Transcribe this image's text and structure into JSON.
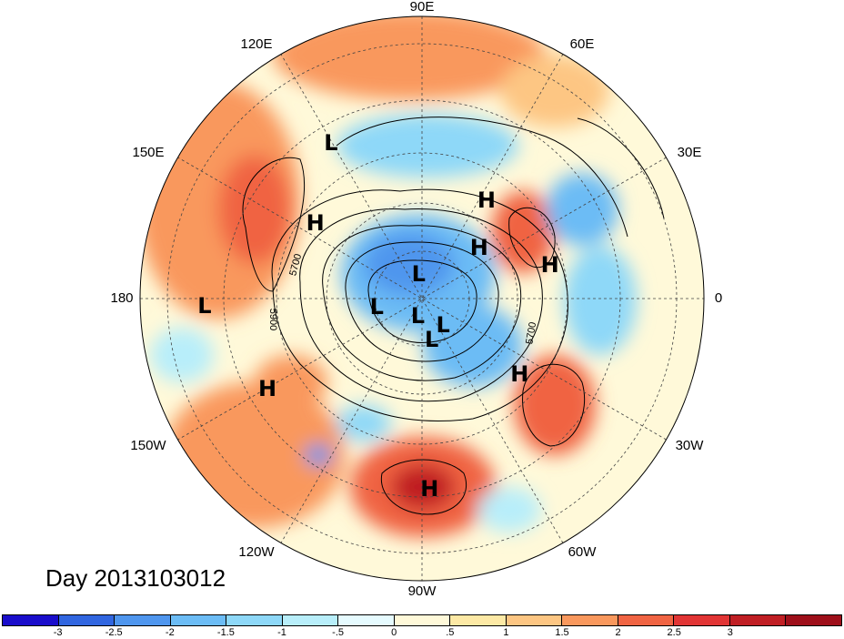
{
  "map": {
    "longitude_labels": [
      "90E",
      "60E",
      "30E",
      "0",
      "30W",
      "60W",
      "90W",
      "120W",
      "150W",
      "180",
      "150E",
      "120E"
    ],
    "pressure_centers": [
      {
        "type": "L",
        "lon_deg": 120,
        "lat_deg": 25
      },
      {
        "type": "L",
        "lon_deg": -178,
        "lat_deg": 15
      },
      {
        "type": "H",
        "lon_deg": 145,
        "lat_deg": 40
      },
      {
        "type": "H",
        "lon_deg": -150,
        "lat_deg": 25
      },
      {
        "type": "H",
        "lon_deg": -88,
        "lat_deg": 22
      },
      {
        "type": "H",
        "lon_deg": -38,
        "lat_deg": 43
      },
      {
        "type": "H",
        "lon_deg": 15,
        "lat_deg": 40
      },
      {
        "type": "H",
        "lon_deg": 42,
        "lat_deg": 60
      },
      {
        "type": "H",
        "lon_deg": 57,
        "lat_deg": 45
      },
      {
        "type": "L",
        "lon_deg": 95,
        "lat_deg": 80
      },
      {
        "type": "L",
        "lon_deg": -170,
        "lat_deg": 72
      },
      {
        "type": "L",
        "lon_deg": -100,
        "lat_deg": 83
      },
      {
        "type": "L",
        "lon_deg": -50,
        "lat_deg": 76
      },
      {
        "type": "L",
        "lon_deg": -75,
        "lat_deg": 73
      }
    ],
    "contour_labels": [
      "5700",
      "5900",
      "5700"
    ]
  },
  "title": "Day 2013103012",
  "colorbar": {
    "colors": [
      "#1a0dcb",
      "#3166e0",
      "#4f96ee",
      "#6cbcf5",
      "#8ed8f8",
      "#b8eefa",
      "#e6fbff",
      "#fff9d9",
      "#fde9a5",
      "#fdc683",
      "#f9985d",
      "#f06443",
      "#e13535",
      "#c01f24",
      "#9e0f1a"
    ],
    "tick_labels": [
      "-3",
      "-2.5",
      "-2",
      "-1.5",
      "-1",
      "-.5",
      "0",
      ".5",
      "1",
      "1.5",
      "2",
      "2.5",
      "3"
    ]
  }
}
